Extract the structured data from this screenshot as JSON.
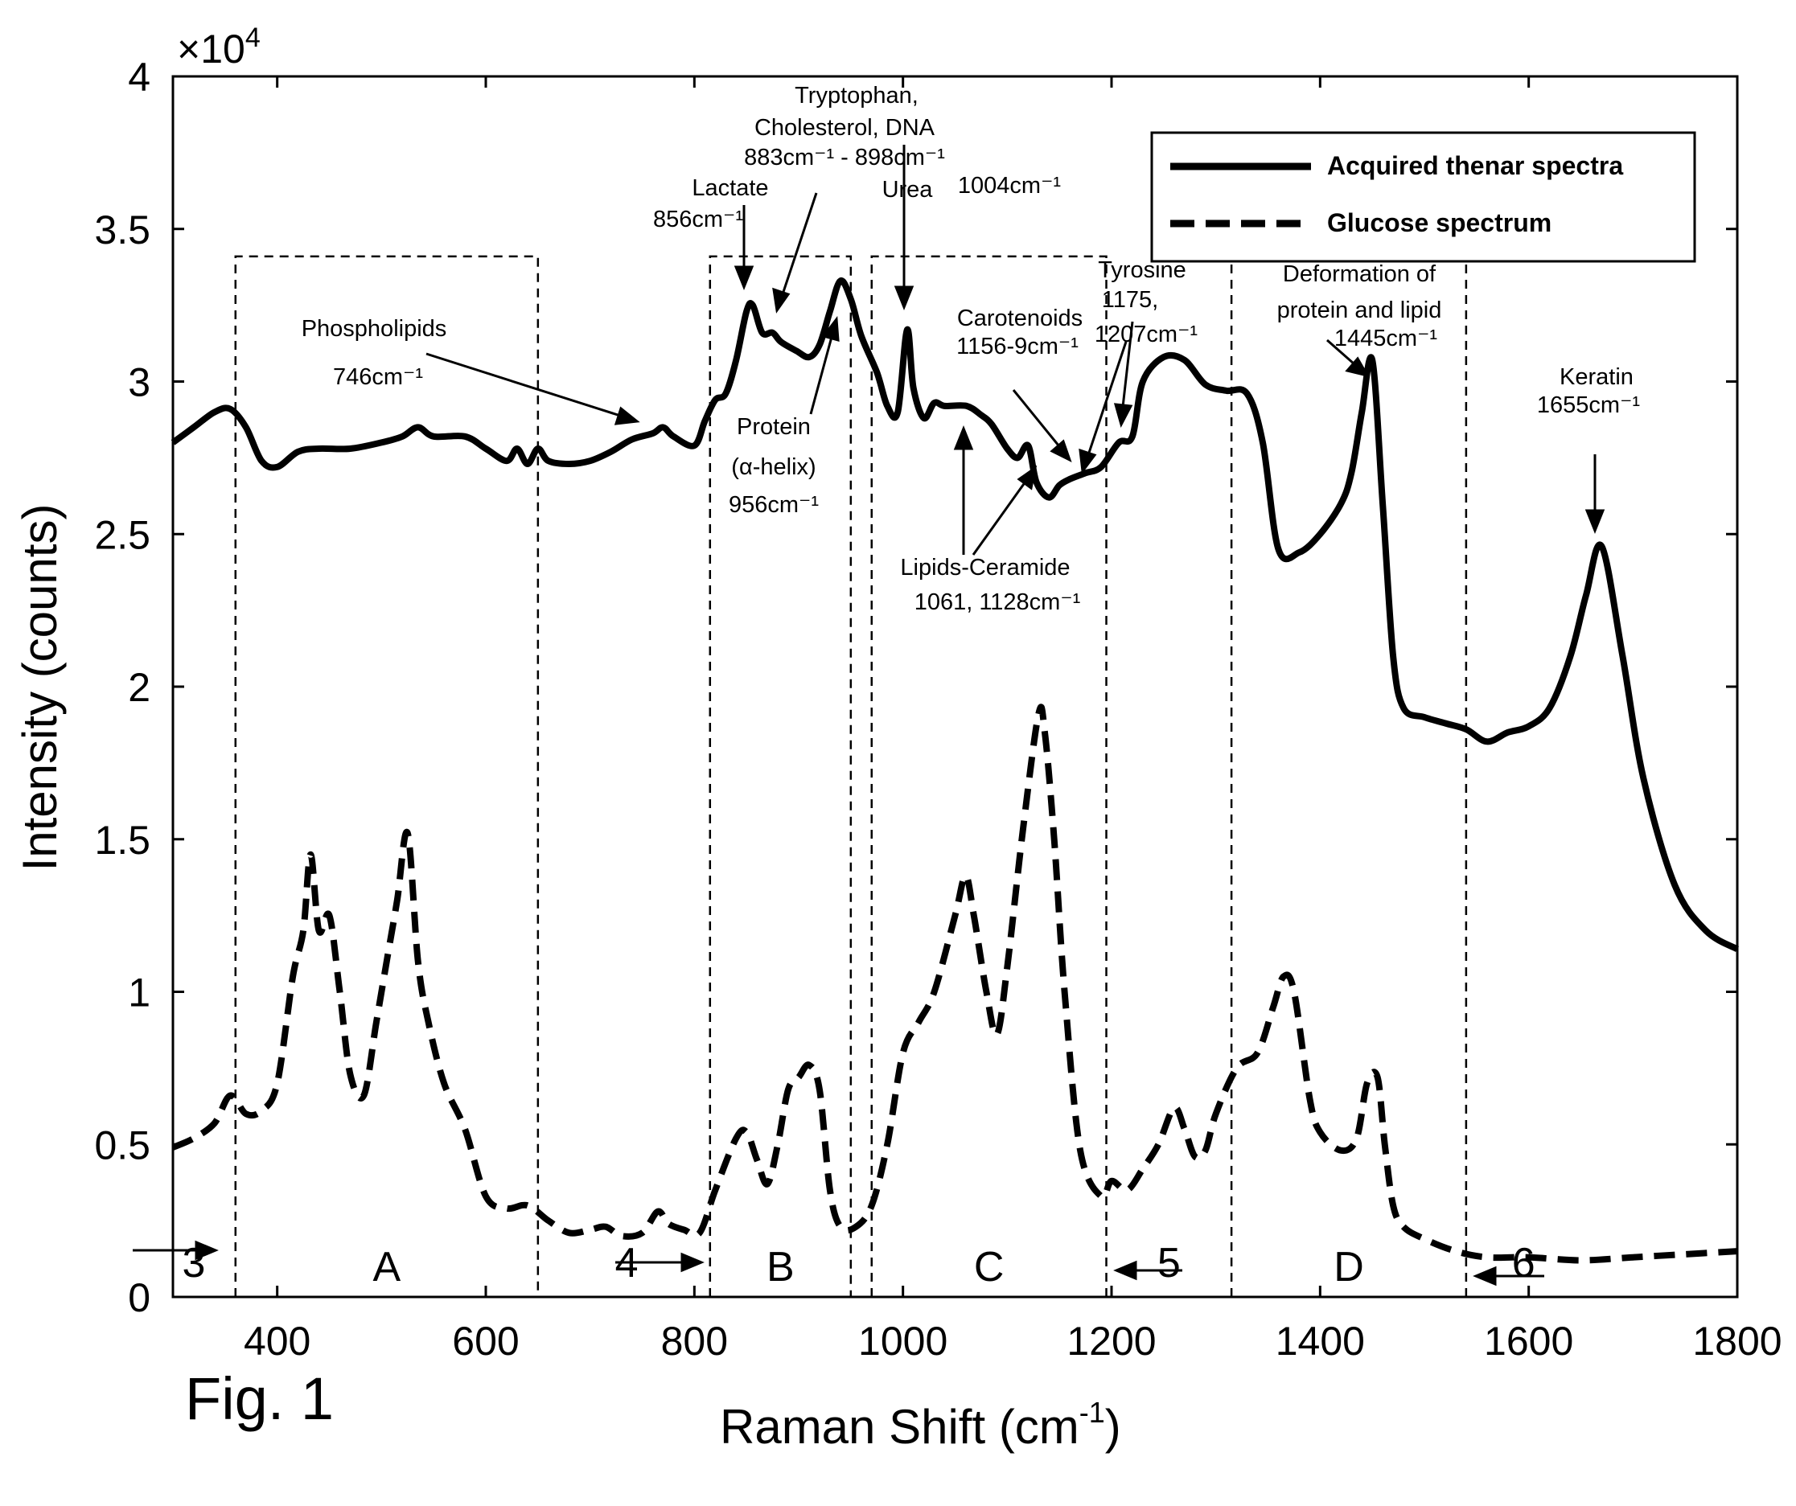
{
  "figure_label": "Fig. 1",
  "chart_data": {
    "type": "line",
    "xlabel": "Raman Shift (cm",
    "xlabel_sup": "-1",
    "xlabel_close": ")",
    "ylabel": "Intensity (counts)",
    "exponent_label": "×10",
    "exponent_power": "4",
    "xlim": [
      300,
      1800
    ],
    "ylim": [
      0,
      40000
    ],
    "x_ticks": [
      400,
      600,
      800,
      1000,
      1200,
      1400,
      1600,
      1800
    ],
    "x_tick_labels": [
      "400",
      "600",
      "800",
      "1000",
      "1200",
      "1400",
      "1600",
      "1800"
    ],
    "y_ticks": [
      0,
      5000,
      10000,
      15000,
      20000,
      25000,
      30000,
      35000,
      40000
    ],
    "y_tick_labels": [
      "0",
      "0.5",
      "1",
      "1.5",
      "2",
      "2.5",
      "3",
      "3.5",
      "4"
    ],
    "grid": false,
    "legend_position": "top-right",
    "series": [
      {
        "name": "Acquired thenar spectra",
        "style": "solid",
        "color": "#000000",
        "x": [
          300,
          320,
          340,
          355,
          370,
          385,
          400,
          420,
          440,
          470,
          500,
          520,
          535,
          550,
          580,
          600,
          620,
          630,
          640,
          650,
          660,
          680,
          700,
          720,
          740,
          760,
          770,
          780,
          800,
          810,
          820,
          830,
          840,
          850,
          856,
          865,
          875,
          883,
          898,
          910,
          920,
          930,
          940,
          950,
          960,
          975,
          985,
          995,
          1004,
          1010,
          1020,
          1030,
          1040,
          1061,
          1075,
          1085,
          1100,
          1110,
          1120,
          1128,
          1140,
          1150,
          1160,
          1175,
          1190,
          1207,
          1220,
          1230,
          1250,
          1270,
          1290,
          1310,
          1330,
          1345,
          1360,
          1380,
          1400,
          1420,
          1430,
          1440,
          1450,
          1460,
          1470,
          1480,
          1500,
          1520,
          1540,
          1560,
          1580,
          1600,
          1620,
          1640,
          1655,
          1670,
          1690,
          1710,
          1740,
          1770,
          1800
        ],
        "y": [
          28000,
          28500,
          29000,
          29100,
          28500,
          27400,
          27200,
          27700,
          27800,
          27800,
          28000,
          28200,
          28500,
          28200,
          28200,
          27800,
          27400,
          27800,
          27300,
          27800,
          27400,
          27300,
          27400,
          27700,
          28100,
          28300,
          28500,
          28200,
          27900,
          28700,
          29400,
          29600,
          30700,
          32300,
          32500,
          31600,
          31600,
          31300,
          31000,
          30800,
          31200,
          32300,
          33300,
          32700,
          31500,
          30300,
          29200,
          29000,
          31700,
          29800,
          28800,
          29300,
          29200,
          29200,
          28900,
          28600,
          27800,
          27500,
          27900,
          26700,
          26200,
          26600,
          26800,
          27000,
          27200,
          28000,
          28200,
          30000,
          30800,
          30700,
          29900,
          29700,
          29600,
          28000,
          24500,
          24400,
          25000,
          26000,
          27000,
          29000,
          30700,
          26000,
          21000,
          19300,
          19000,
          18800,
          18600,
          18200,
          18500,
          18700,
          19300,
          21000,
          23000,
          24600,
          21000,
          17000,
          13500,
          12000,
          11400
        ]
      },
      {
        "name": "Glucose spectrum",
        "style": "dashed",
        "color": "#000000",
        "x": [
          300,
          320,
          340,
          355,
          370,
          385,
          400,
          415,
          425,
          432,
          440,
          450,
          460,
          470,
          483,
          495,
          505,
          515,
          525,
          535,
          545,
          560,
          580,
          600,
          620,
          640,
          660,
          680,
          700,
          715,
          730,
          750,
          765,
          775,
          790,
          805,
          820,
          840,
          850,
          860,
          870,
          880,
          890,
          900,
          910,
          920,
          930,
          940,
          955,
          970,
          985,
          1000,
          1015,
          1030,
          1050,
          1060,
          1068,
          1080,
          1090,
          1100,
          1115,
          1130,
          1136,
          1145,
          1155,
          1170,
          1190,
          1200,
          1215,
          1230,
          1245,
          1260,
          1270,
          1280,
          1290,
          1300,
          1320,
          1340,
          1355,
          1365,
          1375,
          1390,
          1400,
          1420,
          1435,
          1445,
          1455,
          1462,
          1470,
          1480,
          1500,
          1530,
          1560,
          1600,
          1650,
          1700,
          1750,
          1800
        ],
        "y": [
          4900,
          5200,
          5700,
          6600,
          6000,
          6100,
          7000,
          10500,
          12000,
          14500,
          12000,
          12500,
          10000,
          7300,
          6600,
          9000,
          11000,
          13000,
          15200,
          11000,
          9000,
          7000,
          5500,
          3300,
          2900,
          3000,
          2500,
          2100,
          2200,
          2300,
          2000,
          2100,
          2800,
          2400,
          2200,
          2100,
          3500,
          5200,
          5400,
          4500,
          3700,
          5000,
          6800,
          7200,
          7600,
          6800,
          3500,
          2300,
          2300,
          3000,
          5000,
          8000,
          9000,
          10000,
          12500,
          13800,
          12500,
          10000,
          8600,
          10800,
          15300,
          19100,
          18500,
          15000,
          10000,
          4800,
          3300,
          3800,
          3500,
          4200,
          5000,
          6200,
          5500,
          4600,
          4800,
          6000,
          7500,
          8000,
          9500,
          10500,
          10000,
          6500,
          5400,
          4800,
          5200,
          7000,
          7200,
          5000,
          3000,
          2300,
          1900,
          1500,
          1300,
          1300,
          1200,
          1300,
          1400,
          1500
        ]
      }
    ],
    "regions": [
      {
        "label": "A",
        "x0": 360,
        "x1": 650,
        "ytop": 34100
      },
      {
        "label": "B",
        "x0": 815,
        "x1": 950,
        "ytop": 34100
      },
      {
        "label": "C",
        "x0": 970,
        "x1": 1195,
        "ytop": 34100
      },
      {
        "label": "D",
        "x0": 1315,
        "x1": 1540,
        "ytop": 34100
      }
    ],
    "gap_labels": [
      {
        "label": "3",
        "x": 320
      },
      {
        "label": "4",
        "x": 735
      },
      {
        "label": "5",
        "x": 1255
      },
      {
        "label": "6",
        "x": 1595
      }
    ],
    "annotations": [
      {
        "lines": [
          "Phospholipids",
          "746cm⁻¹"
        ]
      },
      {
        "lines": [
          "Lactate",
          "856cm⁻¹"
        ]
      },
      {
        "lines": [
          "Tryptophan,",
          "Cholesterol, DNA",
          "883cm⁻¹ - 898cm⁻¹"
        ]
      },
      {
        "lines": [
          "Urea",
          "1004cm⁻¹"
        ]
      },
      {
        "lines": [
          "Protein",
          "(α-helix)",
          "956cm⁻¹"
        ]
      },
      {
        "lines": [
          "Carotenoids",
          "1156-9cm⁻¹"
        ]
      },
      {
        "lines": [
          "Tyrosine",
          "1175,",
          "1207cm⁻¹"
        ]
      },
      {
        "lines": [
          "Lipids-Ceramide",
          "1061, 1128cm⁻¹"
        ]
      },
      {
        "lines": [
          "Deformation of",
          "protein and lipid",
          "1445cm⁻¹"
        ]
      },
      {
        "lines": [
          "Keratin",
          "1655cm⁻¹"
        ]
      }
    ]
  }
}
